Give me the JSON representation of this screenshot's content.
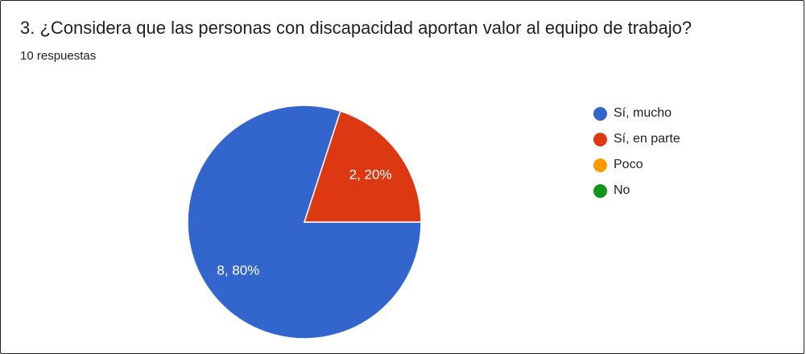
{
  "question": {
    "title": "3. ¿Considera que las personas con discapacidad aportan valor al equipo de trabajo?",
    "responses": "10 respuestas"
  },
  "chart_data": {
    "type": "pie",
    "categories": [
      "Sí, mucho",
      "Sí, en parte",
      "Poco",
      "No"
    ],
    "values": [
      8,
      2,
      0,
      0
    ],
    "slice_labels": [
      "8, 80%",
      "2, 20%",
      "",
      ""
    ],
    "colors": [
      "#3366CC",
      "#DC3912",
      "#FF9900",
      "#109618"
    ],
    "legend_position": "right"
  }
}
